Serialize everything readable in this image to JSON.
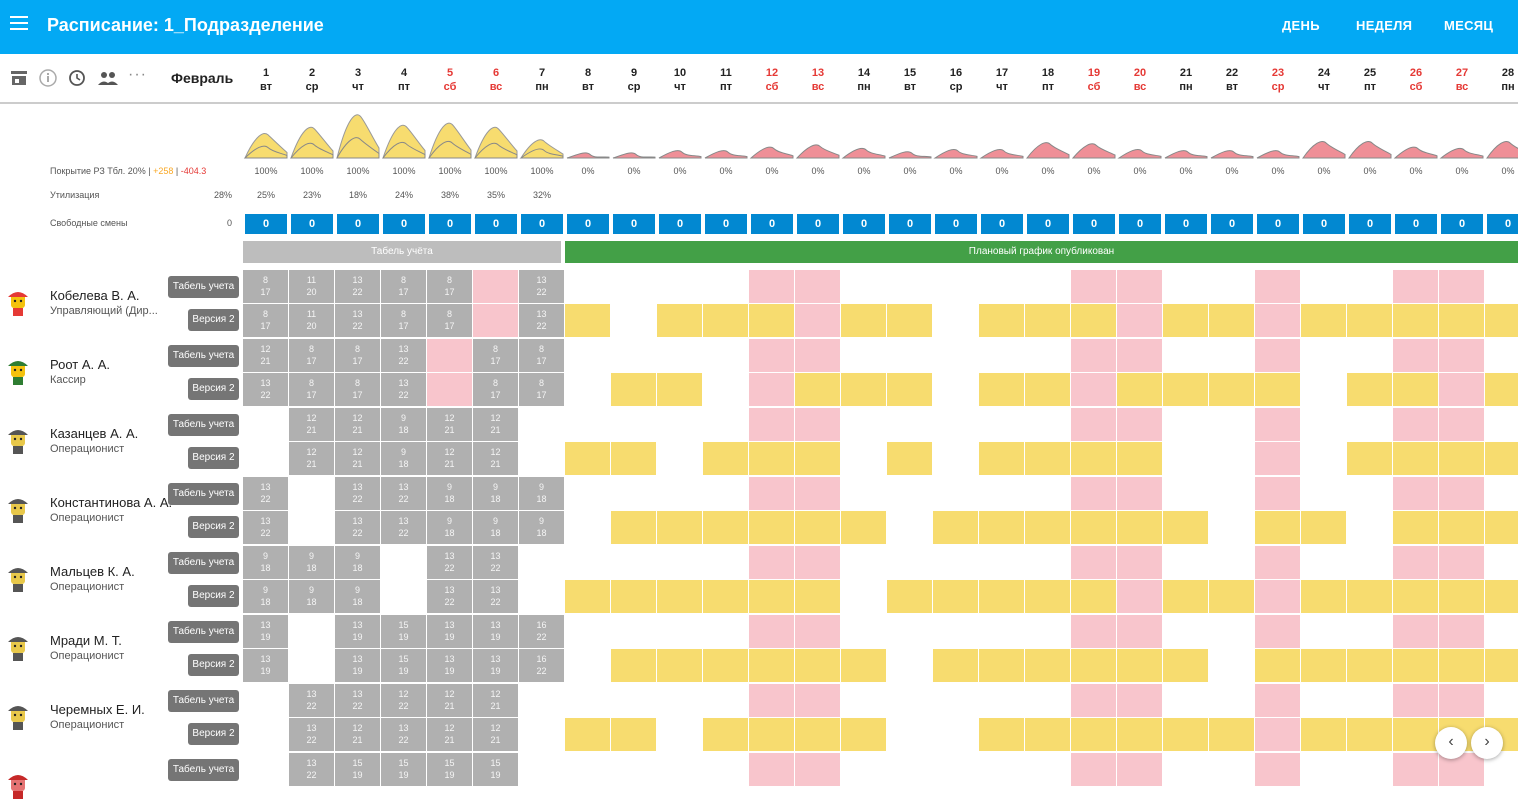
{
  "app": {
    "title": "Расписание: 1_Подразделение",
    "tabs": [
      "ДЕНЬ",
      "НЕДЕЛЯ",
      "МЕСЯЦ"
    ]
  },
  "toolbar": {
    "icons": [
      "store-icon",
      "info-icon",
      "history-icon",
      "people-icon",
      "more-icon"
    ],
    "month": "Февраль"
  },
  "days": [
    {
      "n": "1",
      "d": "вт",
      "we": false
    },
    {
      "n": "2",
      "d": "ср",
      "we": false
    },
    {
      "n": "3",
      "d": "чт",
      "we": false
    },
    {
      "n": "4",
      "d": "пт",
      "we": false
    },
    {
      "n": "5",
      "d": "сб",
      "we": true
    },
    {
      "n": "6",
      "d": "вс",
      "we": true
    },
    {
      "n": "7",
      "d": "пн",
      "we": false
    },
    {
      "n": "8",
      "d": "вт",
      "we": false
    },
    {
      "n": "9",
      "d": "ср",
      "we": false
    },
    {
      "n": "10",
      "d": "чт",
      "we": false
    },
    {
      "n": "11",
      "d": "пт",
      "we": false
    },
    {
      "n": "12",
      "d": "сб",
      "we": true
    },
    {
      "n": "13",
      "d": "вс",
      "we": true
    },
    {
      "n": "14",
      "d": "пн",
      "we": false
    },
    {
      "n": "15",
      "d": "вт",
      "we": false
    },
    {
      "n": "16",
      "d": "ср",
      "we": false
    },
    {
      "n": "17",
      "d": "чт",
      "we": false
    },
    {
      "n": "18",
      "d": "пт",
      "we": false
    },
    {
      "n": "19",
      "d": "сб",
      "we": true
    },
    {
      "n": "20",
      "d": "вс",
      "we": true
    },
    {
      "n": "21",
      "d": "пн",
      "we": false
    },
    {
      "n": "22",
      "d": "вт",
      "we": false
    },
    {
      "n": "23",
      "d": "ср",
      "we": true
    },
    {
      "n": "24",
      "d": "чт",
      "we": false
    },
    {
      "n": "25",
      "d": "пт",
      "we": false
    },
    {
      "n": "26",
      "d": "сб",
      "we": true
    },
    {
      "n": "27",
      "d": "вс",
      "we": true
    },
    {
      "n": "28",
      "d": "пн",
      "we": false
    }
  ],
  "stats": {
    "coverage_label": "Покрытие РЗ Тбл. 20%",
    "coverage_pos": "+258",
    "coverage_neg": "-404.3",
    "coverage": [
      "100%",
      "100%",
      "100%",
      "100%",
      "100%",
      "100%",
      "100%",
      "0%",
      "0%",
      "0%",
      "0%",
      "0%",
      "0%",
      "0%",
      "0%",
      "0%",
      "0%",
      "0%",
      "0%",
      "0%",
      "0%",
      "0%",
      "0%",
      "0%",
      "0%",
      "0%",
      "0%",
      "0%"
    ],
    "utilization_label": "Утилизация",
    "utilization_total": "28%",
    "utilization": [
      "25%",
      "23%",
      "18%",
      "24%",
      "38%",
      "35%",
      "32%"
    ],
    "free_label": "Свободные смены",
    "free_total": "0",
    "free": [
      "0",
      "0",
      "0",
      "0",
      "0",
      "0",
      "0",
      "0",
      "0",
      "0",
      "0",
      "0",
      "0",
      "0",
      "0",
      "0",
      "0",
      "0",
      "0",
      "0",
      "0",
      "0",
      "0",
      "0",
      "0",
      "0",
      "0",
      "0"
    ],
    "coverage_curve_fact": [
      0.55,
      0.7,
      1.0,
      0.75,
      0.8,
      0.7,
      0.4
    ],
    "coverage_curve_plan": [
      0.15,
      0.15,
      0.25,
      0.25,
      0.4,
      0.5,
      0.35,
      0.2,
      0.3,
      0.3,
      0.6,
      0.55,
      0.3,
      0.25,
      0.25,
      0.25,
      0.65,
      0.65,
      0.4,
      0.35,
      0.65,
      0.4,
      0.35,
      0.6,
      0.5,
      0.6,
      0.35
    ]
  },
  "banners": {
    "tabel": "Табель учёта",
    "published": "Плановый график опубликован"
  },
  "chips": {
    "tabel": "Табель учета",
    "version": "Версия 2"
  },
  "employees": [
    {
      "name": "Кобелева В. А.",
      "role": "Управляющий (Дир...",
      "avatar": "yellow-avatar",
      "tabel": [
        [
          "8",
          "17"
        ],
        [
          "11",
          "20"
        ],
        [
          "13",
          "22"
        ],
        [
          "8",
          "17"
        ],
        [
          "8",
          "17"
        ],
        "pink",
        [
          "13",
          "22"
        ]
      ],
      "plan": [
        [
          "8",
          "17"
        ],
        [
          "11",
          "20"
        ],
        [
          "13",
          "22"
        ],
        [
          "8",
          "17"
        ],
        [
          "8",
          "17"
        ],
        "pink",
        [
          "13",
          "22"
        ]
      ],
      "future": [
        1,
        0,
        1,
        1,
        1,
        0,
        1,
        1,
        0,
        1,
        1,
        1,
        0,
        1,
        1,
        0,
        1,
        1,
        1,
        1,
        1
      ]
    },
    {
      "name": "Роот А. А.",
      "role": "Кассир",
      "avatar": "green-hat-avatar",
      "tabel": [
        [
          "12",
          "21"
        ],
        [
          "8",
          "17"
        ],
        [
          "8",
          "17"
        ],
        [
          "13",
          "22"
        ],
        "pink",
        [
          "8",
          "17"
        ],
        [
          "8",
          "17"
        ]
      ],
      "plan": [
        [
          "13",
          "22"
        ],
        [
          "8",
          "17"
        ],
        [
          "8",
          "17"
        ],
        [
          "13",
          "22"
        ],
        "pink",
        [
          "8",
          "17"
        ],
        [
          "8",
          "17"
        ]
      ],
      "future": [
        0,
        1,
        1,
        0,
        0,
        1,
        1,
        1,
        0,
        1,
        1,
        0,
        1,
        1,
        1,
        1,
        0,
        1,
        1,
        0,
        1
      ]
    },
    {
      "name": "Казанцев А. А.",
      "role": "Операционист",
      "avatar": "helmet-avatar",
      "tabel": [
        "",
        [
          "12",
          "21"
        ],
        [
          "12",
          "21"
        ],
        [
          "9",
          "18"
        ],
        [
          "12",
          "21"
        ],
        [
          "12",
          "21"
        ],
        ""
      ],
      "plan": [
        "",
        [
          "12",
          "21"
        ],
        [
          "12",
          "21"
        ],
        [
          "9",
          "18"
        ],
        [
          "12",
          "21"
        ],
        [
          "12",
          "21"
        ],
        ""
      ],
      "future": [
        1,
        1,
        0,
        1,
        1,
        1,
        0,
        1,
        0,
        1,
        1,
        1,
        1,
        0,
        0,
        0,
        0,
        1,
        1,
        1,
        1
      ]
    },
    {
      "name": "Константинова А. А.",
      "role": "Операционист",
      "avatar": "helmet-avatar",
      "tabel": [
        [
          "13",
          "22"
        ],
        "",
        [
          "13",
          "22"
        ],
        [
          "13",
          "22"
        ],
        [
          "9",
          "18"
        ],
        [
          "9",
          "18"
        ],
        [
          "9",
          "18"
        ]
      ],
      "plan": [
        [
          "13",
          "22"
        ],
        "",
        [
          "13",
          "22"
        ],
        [
          "13",
          "22"
        ],
        [
          "9",
          "18"
        ],
        [
          "9",
          "18"
        ],
        [
          "9",
          "18"
        ]
      ],
      "future": [
        0,
        1,
        1,
        1,
        1,
        1,
        1,
        0,
        1,
        1,
        1,
        1,
        1,
        1,
        0,
        1,
        1,
        0,
        1,
        1,
        1
      ]
    },
    {
      "name": "Мальцев К. А.",
      "role": "Операционист",
      "avatar": "helmet-avatar",
      "tabel": [
        [
          "9",
          "18"
        ],
        [
          "9",
          "18"
        ],
        [
          "9",
          "18"
        ],
        "",
        [
          "13",
          "22"
        ],
        [
          "13",
          "22"
        ],
        ""
      ],
      "plan": [
        [
          "9",
          "18"
        ],
        [
          "9",
          "18"
        ],
        [
          "9",
          "18"
        ],
        "",
        [
          "13",
          "22"
        ],
        [
          "13",
          "22"
        ],
        ""
      ],
      "future": [
        1,
        1,
        1,
        1,
        1,
        1,
        0,
        1,
        1,
        1,
        1,
        1,
        0,
        1,
        1,
        0,
        1,
        1,
        1,
        1,
        1
      ]
    },
    {
      "name": "Мради М. Т.",
      "role": "Операционист",
      "avatar": "helmet-avatar",
      "tabel": [
        [
          "13",
          "19"
        ],
        "",
        [
          "13",
          "19"
        ],
        [
          "15",
          "19"
        ],
        [
          "13",
          "19"
        ],
        [
          "13",
          "19"
        ],
        [
          "16",
          "22"
        ]
      ],
      "plan": [
        [
          "13",
          "19"
        ],
        "",
        [
          "13",
          "19"
        ],
        [
          "15",
          "19"
        ],
        [
          "13",
          "19"
        ],
        [
          "13",
          "19"
        ],
        [
          "16",
          "22"
        ]
      ],
      "future": [
        0,
        1,
        1,
        1,
        1,
        1,
        1,
        0,
        1,
        1,
        1,
        1,
        1,
        1,
        0,
        1,
        1,
        1,
        1,
        1,
        1
      ]
    },
    {
      "name": "Черемных Е. И.",
      "role": "Операционист",
      "avatar": "helmet-avatar",
      "tabel": [
        "",
        [
          "13",
          "22"
        ],
        [
          "13",
          "22"
        ],
        [
          "12",
          "22"
        ],
        [
          "12",
          "21"
        ],
        [
          "12",
          "21"
        ],
        ""
      ],
      "plan": [
        "",
        [
          "13",
          "22"
        ],
        [
          "12",
          "21"
        ],
        [
          "13",
          "22"
        ],
        [
          "12",
          "21"
        ],
        [
          "12",
          "21"
        ],
        ""
      ],
      "future": [
        1,
        1,
        0,
        1,
        1,
        1,
        1,
        0,
        0,
        1,
        1,
        1,
        1,
        1,
        1,
        0,
        1,
        1,
        1,
        1,
        1
      ]
    },
    {
      "name": "",
      "role": "",
      "avatar": "red-avatar",
      "tabel": [
        "",
        [
          "13",
          "22"
        ],
        [
          "15",
          "19"
        ],
        [
          "15",
          "19"
        ],
        [
          "15",
          "19"
        ],
        [
          "15",
          "19"
        ],
        ""
      ],
      "plan": [],
      "future": []
    }
  ]
}
